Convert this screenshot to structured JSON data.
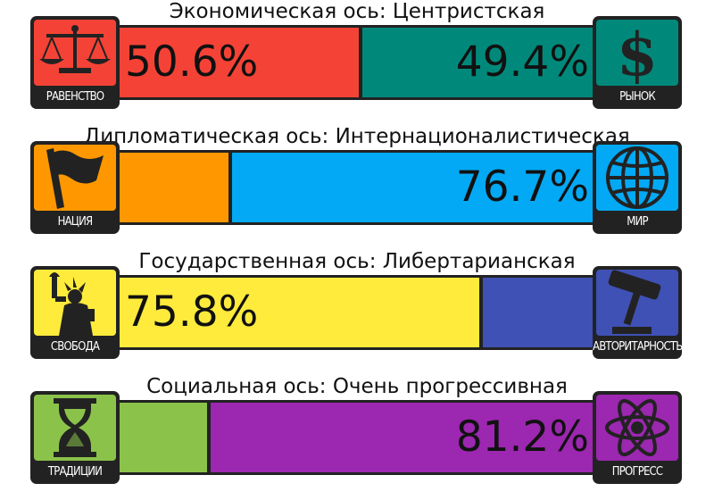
{
  "chart_data": {
    "type": "bar",
    "axes": [
      {
        "title": "Экономическая ось: Центристская",
        "left": {
          "label": "РАВЕНСТВО",
          "value": 50.6,
          "text": "50.6%",
          "color": "#f44336",
          "icon": "scales-icon"
        },
        "right": {
          "label": "РЫНОК",
          "value": 49.4,
          "text": "49.4%",
          "color": "#00897b",
          "icon": "dollar-icon"
        },
        "shown": "both"
      },
      {
        "title": "Дипломатическая ось: Интернационалистическая",
        "left": {
          "label": "НАЦИЯ",
          "value": 23.3,
          "text": "",
          "color": "#ff9800",
          "icon": "flag-icon"
        },
        "right": {
          "label": "МИР",
          "value": 76.7,
          "text": "76.7%",
          "color": "#03a9f4",
          "icon": "globe-icon"
        },
        "shown": "right"
      },
      {
        "title": "Государственная ось: Либертарианская",
        "left": {
          "label": "СВОБОДА",
          "value": 75.8,
          "text": "75.8%",
          "color": "#ffeb3b",
          "icon": "liberty-statue-icon"
        },
        "right": {
          "label": "АВТОРИТАРНОСТЬ",
          "value": 24.2,
          "text": "",
          "color": "#3f51b5",
          "icon": "gavel-icon"
        },
        "shown": "left"
      },
      {
        "title": "Социальная ось: Очень прогрессивная",
        "left": {
          "label": "ТРАДИЦИИ",
          "value": 18.8,
          "text": "",
          "color": "#8bc34a",
          "icon": "hourglass-icon"
        },
        "right": {
          "label": "ПРОГРЕСС",
          "value": 81.2,
          "text": "81.2%",
          "color": "#9c27b0",
          "icon": "atom-icon"
        },
        "shown": "right"
      }
    ]
  }
}
